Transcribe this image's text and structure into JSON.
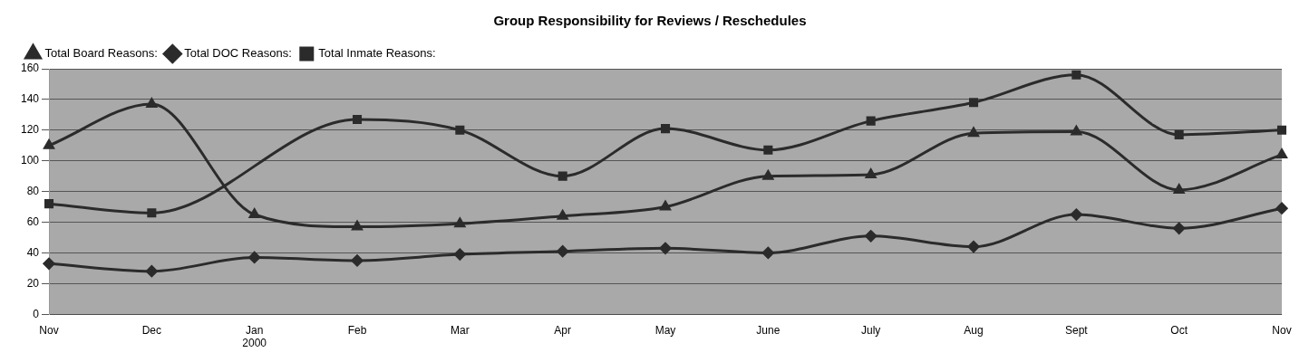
{
  "chart_data": {
    "type": "line",
    "title": "Group Responsibility for Reviews / Reschedules",
    "categories": [
      "Nov",
      "Dec",
      "Jan\n2000",
      "Feb",
      "Mar",
      "Apr",
      "May",
      "June",
      "July",
      "Aug",
      "Sept",
      "Oct",
      "Nov"
    ],
    "series": [
      {
        "name": "Total Board Reasons:",
        "color": "#2b2b2b",
        "marker": "triangle",
        "values": [
          110,
          137,
          65,
          57,
          59,
          64,
          70,
          90,
          91,
          118,
          119,
          81,
          104
        ]
      },
      {
        "name": "Total DOC Reasons:",
        "color": "#2b2b2b",
        "marker": "diamond",
        "values": [
          33,
          28,
          37,
          35,
          39,
          41,
          43,
          40,
          51,
          44,
          65,
          56,
          69
        ]
      },
      {
        "name": "Total Inmate Reasons:",
        "color": "#2b2b2b",
        "marker": "square",
        "values": [
          72,
          66,
          null,
          127,
          120,
          90,
          121,
          107,
          126,
          138,
          156,
          117,
          120
        ]
      }
    ],
    "ylim": [
      0,
      160
    ],
    "yticks": [
      0,
      20,
      40,
      60,
      80,
      100,
      120,
      140,
      160
    ],
    "grid": "y",
    "legend": "top left"
  }
}
